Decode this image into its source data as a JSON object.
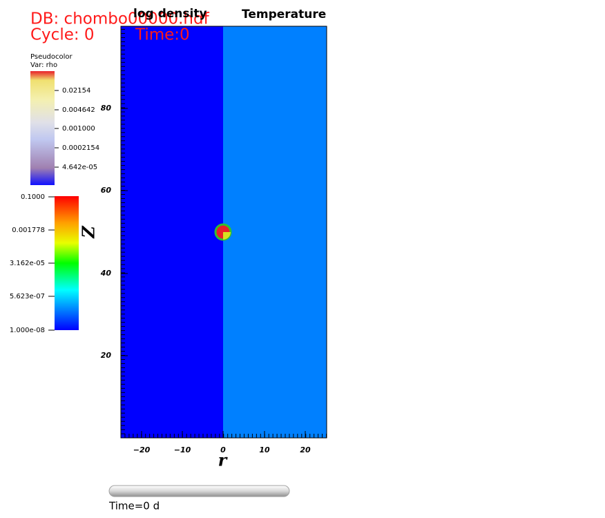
{
  "header": {
    "database": "DB: chombo00000.hdf",
    "cycle": "Cycle: 0",
    "time": "Time:0"
  },
  "plot_titles": [
    "log density",
    "Temperature"
  ],
  "legend_rho": {
    "title": "Pseudocolor",
    "variable": "Var: rho",
    "labels": [
      "0.02154",
      "0.004642",
      "0.001000",
      "0.0002154",
      "4.642e-05"
    ]
  },
  "legend_temperature": {
    "labels": [
      "0.1000",
      "0.001778",
      "3.162e-05",
      "5.623e-07",
      "1.000e-08"
    ]
  },
  "axes": {
    "x_label": "r",
    "y_label": "Z",
    "x_ticks": [
      "−20",
      "−10",
      "0",
      "10",
      "20"
    ],
    "y_ticks": [
      "80",
      "60",
      "40",
      "20"
    ]
  },
  "time_slider": {
    "label": "Time=0 d"
  }
}
